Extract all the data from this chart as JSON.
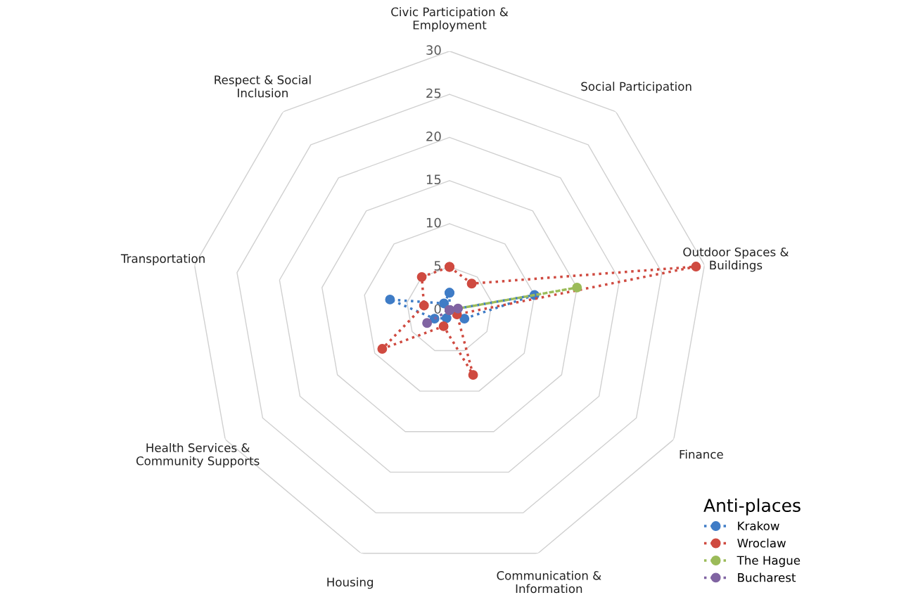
{
  "chart_data": {
    "type": "radar",
    "categories": [
      "Civic Participation &\nEmployment",
      "Social Participation",
      "Outdoor Spaces &\nBuildings",
      "Finance",
      "Communication &\nInformation",
      "Housing",
      "Health Services &\nCommunity Supports",
      "Transportation",
      "Respect & Social\nInclusion"
    ],
    "series": [
      {
        "name": "Krakow",
        "color": "#3f7cc6",
        "values": [
          2,
          0,
          10,
          2,
          0,
          1,
          2,
          7,
          1
        ]
      },
      {
        "name": "Wroclaw",
        "color": "#cf4a40",
        "values": [
          5,
          4,
          29,
          1,
          8,
          2,
          9,
          3,
          5
        ]
      },
      {
        "name": "The Hague",
        "color": "#9bbb59",
        "values": [
          0,
          0,
          15,
          0,
          0,
          0,
          0,
          0,
          0
        ]
      },
      {
        "name": "Bucharest",
        "color": "#8064a2",
        "values": [
          0,
          0,
          1,
          0,
          0,
          0,
          3,
          0,
          0
        ]
      }
    ],
    "ylim": [
      0,
      30
    ],
    "yticks": [
      0,
      5,
      10,
      15,
      20,
      25,
      30
    ],
    "grid": true,
    "legend": "bottom right",
    "legend_title": "Anti-places",
    "marker": "circle",
    "line_style": "dotted"
  }
}
